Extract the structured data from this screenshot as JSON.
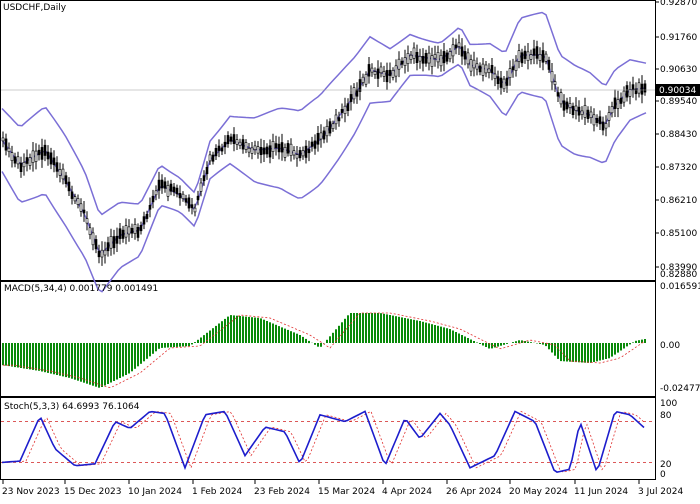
{
  "window": {
    "symbol_title": "USDCHF,Daily",
    "current_price_label": "0.90034"
  },
  "panels": {
    "main": {
      "price_ticks": [
        "0.92870",
        "0.91760",
        "0.90630",
        "0.89540",
        "0.88430",
        "0.87320",
        "0.86210",
        "0.85100",
        "0.83990",
        "0.82880"
      ],
      "ylim": [
        0.8288,
        0.9287
      ]
    },
    "macd": {
      "title": "MACD(5,34,4) 0.001779 0.001491",
      "ticks": [
        "0.016591",
        "0.00",
        "-0.024771"
      ],
      "ylim": [
        -0.024771,
        0.016591
      ]
    },
    "stoch": {
      "title": "Stoch(5,3,3) 64.6993 76.1064",
      "ticks": [
        "100",
        "80",
        "20",
        "0"
      ],
      "levels": [
        80,
        20
      ]
    }
  },
  "x_axis": {
    "labels": [
      "23 Nov 2023",
      "15 Dec 2023",
      "10 Jan 2024",
      "1 Feb 2024",
      "23 Feb 2024",
      "15 Mar 2024",
      "4 Apr 2024",
      "26 Apr 2024",
      "20 May 2024",
      "11 Jun 2024",
      "3 Jul 2024"
    ]
  },
  "colors": {
    "bollinger": "#7b6fd6",
    "macd_histogram": "#0a8a0a",
    "signal_line": "#e0302f",
    "stoch_main": "#1d1dcc",
    "level_line": "#d02020",
    "candle": "#000000",
    "grid_frame": "#000000"
  },
  "chart_data": {
    "type": "line",
    "title": "USDCHF,Daily",
    "x": [
      "23 Nov 2023",
      "15 Dec 2023",
      "10 Jan 2024",
      "1 Feb 2024",
      "23 Feb 2024",
      "15 Mar 2024",
      "4 Apr 2024",
      "26 Apr 2024",
      "20 May 2024",
      "11 Jun 2024",
      "3 Jul 2024"
    ],
    "series": [
      {
        "name": "USDCHF",
        "values": [
          0.88,
          0.854,
          0.85,
          0.864,
          0.881,
          0.883,
          0.904,
          0.912,
          0.906,
          0.888,
          0.9003
        ]
      }
    ],
    "last_price": 0.90034,
    "ylim": [
      0.8288,
      0.9287
    ],
    "indicators": [
      {
        "type": "bar",
        "title": "MACD(5,34,4)",
        "values": [
          0.001779,
          0.001491
        ],
        "ylim": [
          -0.024771,
          0.016591
        ]
      },
      {
        "type": "line",
        "title": "Stoch(5,3,3)",
        "values": [
          64.6993,
          76.1064
        ],
        "levels": [
          80,
          20
        ],
        "ylim": [
          0,
          100
        ]
      }
    ]
  }
}
